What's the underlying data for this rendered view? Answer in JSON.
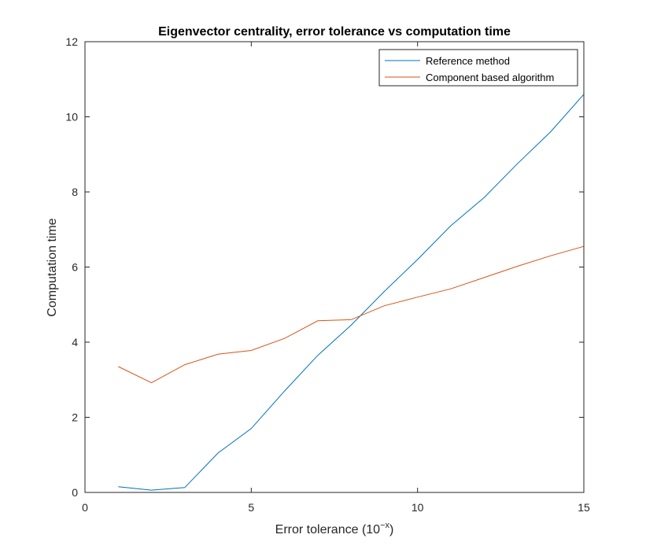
{
  "chart_data": {
    "type": "line",
    "title": "Eigenvector centrality, error tolerance vs computation time",
    "xlabel": "Error tolerance (10",
    "xlabel_superscript": "−x",
    "xlabel_suffix": ")",
    "ylabel": "Computation time",
    "xlim": [
      0,
      15
    ],
    "ylim": [
      0,
      12
    ],
    "xticks": [
      0,
      5,
      10,
      15
    ],
    "yticks": [
      0,
      2,
      4,
      6,
      8,
      10,
      12
    ],
    "grid": false,
    "legend_position": "top-right",
    "x": [
      1,
      2,
      3,
      4,
      5,
      6,
      7,
      8,
      9,
      10,
      11,
      12,
      13,
      14,
      15
    ],
    "series": [
      {
        "name": "Reference method",
        "color": "#0072BD",
        "values": [
          0.15,
          0.06,
          0.13,
          1.05,
          1.7,
          2.7,
          3.65,
          4.45,
          5.35,
          6.2,
          7.1,
          7.85,
          8.75,
          9.6,
          10.6
        ]
      },
      {
        "name": "Component based algorithm",
        "color": "#D95319",
        "values": [
          3.35,
          2.92,
          3.4,
          3.68,
          3.78,
          4.1,
          4.57,
          4.6,
          4.97,
          5.2,
          5.42,
          5.72,
          6.02,
          6.3,
          6.55
        ]
      }
    ]
  }
}
